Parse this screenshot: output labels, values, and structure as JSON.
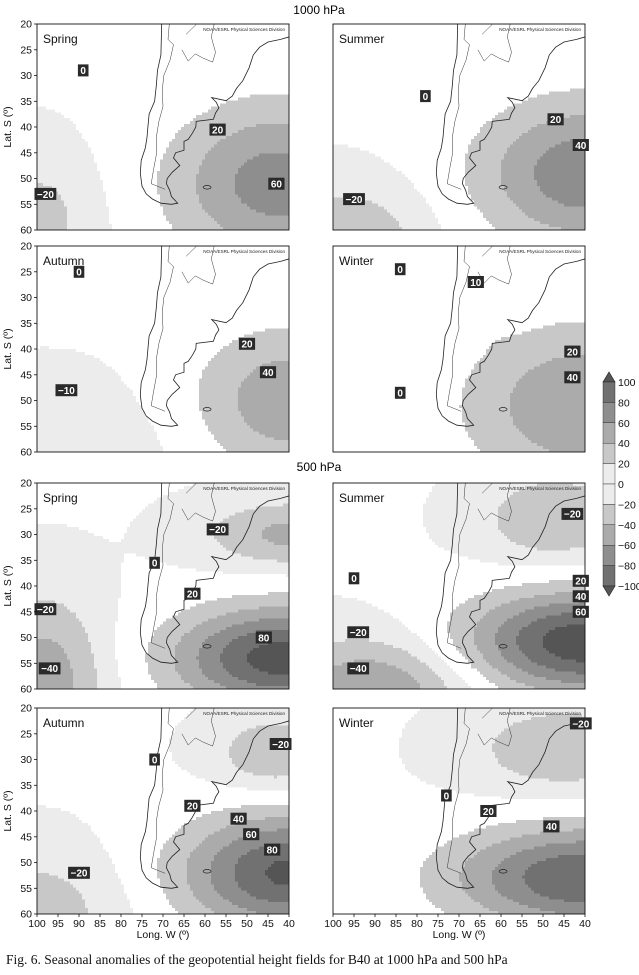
{
  "section_labels": [
    "1000 hPa",
    "500 hPa"
  ],
  "caption": "Fig. 6. Seasonal anomalies of the geopotential height fields for B40 at 1000 hPa and 500 hPa",
  "source_note": "NOAA/ESRL Physical Sciences Division",
  "colorbar": {
    "labels": [
      "100",
      "80",
      "60",
      "40",
      "20",
      "0",
      "−20",
      "−40",
      "−60",
      "−80",
      "−100"
    ],
    "levels": [
      100,
      80,
      60,
      40,
      20,
      0,
      -20,
      -40,
      -60,
      -80,
      -100
    ],
    "colors": [
      "#555555",
      "#717171",
      "#8e8e8e",
      "#ababab",
      "#c8c8c8",
      "#ececec",
      "#ececec",
      "#c8c8c8",
      "#ababab",
      "#8e8e8e",
      "#717171",
      "#555555"
    ]
  },
  "chart_data": [
    {
      "type": "contour",
      "level": "1000 hPa",
      "season": "Spring",
      "xlabel": "",
      "ylabel": "Lat. S (º)",
      "xlim": [
        100,
        40
      ],
      "ylim": [
        20,
        60
      ],
      "x_ticks": [],
      "y_ticks": [
        20,
        25,
        30,
        35,
        40,
        45,
        50,
        55,
        60
      ],
      "centers": [
        {
          "lon": 43,
          "lat": 51,
          "amp": 70,
          "sx": 18,
          "sy": 11
        },
        {
          "lon": 100,
          "lat": 58,
          "amp": -28,
          "sx": 10,
          "sy": 9
        }
      ],
      "contour_labels": [
        {
          "text": "0",
          "lon": 89,
          "lat": 29
        },
        {
          "text": "20",
          "lon": 57,
          "lat": 40.5
        },
        {
          "text": "60",
          "lon": 43,
          "lat": 51
        },
        {
          "text": "−20",
          "lon": 98,
          "lat": 53
        }
      ]
    },
    {
      "type": "contour",
      "level": "1000 hPa",
      "season": "Summer",
      "xlabel": "",
      "ylabel": "",
      "xlim": [
        100,
        40
      ],
      "ylim": [
        20,
        60
      ],
      "x_ticks": [],
      "y_ticks": [],
      "centers": [
        {
          "lon": 40,
          "lat": 49,
          "amp": 75,
          "sx": 18,
          "sy": 10
        },
        {
          "lon": 96,
          "lat": 61,
          "amp": -35,
          "sx": 13,
          "sy": 7
        }
      ],
      "contour_labels": [
        {
          "text": "0",
          "lon": 78,
          "lat": 34
        },
        {
          "text": "20",
          "lon": 47,
          "lat": 38.5
        },
        {
          "text": "40",
          "lon": 41,
          "lat": 43.5
        },
        {
          "text": "−20",
          "lon": 95,
          "lat": 54
        }
      ]
    },
    {
      "type": "contour",
      "level": "1000 hPa",
      "season": "Autumn",
      "xlabel": "",
      "ylabel": "Lat. S (º)",
      "xlim": [
        100,
        40
      ],
      "ylim": [
        20,
        60
      ],
      "x_ticks": [],
      "y_ticks": [
        20,
        25,
        30,
        35,
        40,
        45,
        50,
        55,
        60
      ],
      "centers": [
        {
          "lon": 40,
          "lat": 50,
          "amp": 55,
          "sx": 16,
          "sy": 10
        },
        {
          "lon": 95,
          "lat": 60,
          "amp": -16,
          "sx": 20,
          "sy": 9
        }
      ],
      "contour_labels": [
        {
          "text": "0",
          "lon": 90,
          "lat": 25
        },
        {
          "text": "20",
          "lon": 50,
          "lat": 39
        },
        {
          "text": "40",
          "lon": 45,
          "lat": 44.5
        },
        {
          "text": "−10",
          "lon": 93,
          "lat": 48
        }
      ]
    },
    {
      "type": "contour",
      "level": "1000 hPa",
      "season": "Winter",
      "xlabel": "",
      "ylabel": "",
      "xlim": [
        100,
        40
      ],
      "ylim": [
        20,
        60
      ],
      "x_ticks": [],
      "y_ticks": [],
      "centers": [
        {
          "lon": 40,
          "lat": 51,
          "amp": 60,
          "sx": 20,
          "sy": 11
        },
        {
          "lon": 63,
          "lat": 29,
          "amp": 14,
          "sx": 3.5,
          "sy": 5
        }
      ],
      "contour_labels": [
        {
          "text": "0",
          "lon": 84,
          "lat": 24.5
        },
        {
          "text": "10",
          "lon": 66,
          "lat": 27
        },
        {
          "text": "20",
          "lon": 43,
          "lat": 40.5
        },
        {
          "text": "40",
          "lon": 43,
          "lat": 45.5
        },
        {
          "text": "0",
          "lon": 84,
          "lat": 48.5
        }
      ]
    },
    {
      "type": "contour",
      "level": "500 hPa",
      "season": "Spring",
      "xlabel": "",
      "ylabel": "Lat. S (º)",
      "xlim": [
        100,
        40
      ],
      "ylim": [
        20,
        60
      ],
      "x_ticks": [],
      "y_ticks": [
        20,
        25,
        30,
        35,
        40,
        45,
        50,
        55,
        60
      ],
      "centers": [
        {
          "lon": 42,
          "lat": 54,
          "amp": 110,
          "sx": 18,
          "sy": 7
        },
        {
          "lon": 40,
          "lat": 30,
          "amp": -45,
          "sx": 14,
          "sy": 4.5
        },
        {
          "lon": 98,
          "lat": 58,
          "amp": -52,
          "sx": 10,
          "sy": 11
        }
      ],
      "contour_labels": [
        {
          "text": "−20",
          "lon": 57,
          "lat": 29
        },
        {
          "text": "0",
          "lon": 72,
          "lat": 35.5
        },
        {
          "text": "20",
          "lon": 63,
          "lat": 41.5
        },
        {
          "text": "80",
          "lon": 46,
          "lat": 50
        },
        {
          "text": "−20",
          "lon": 98,
          "lat": 44.5
        },
        {
          "text": "−40",
          "lon": 97,
          "lat": 56
        }
      ]
    },
    {
      "type": "contour",
      "level": "500 hPa",
      "season": "Summer",
      "xlabel": "",
      "ylabel": "",
      "xlim": [
        100,
        40
      ],
      "ylim": [
        20,
        60
      ],
      "x_ticks": [],
      "y_ticks": [],
      "centers": [
        {
          "lon": 40,
          "lat": 51,
          "amp": 115,
          "sx": 20,
          "sy": 7
        },
        {
          "lon": 47,
          "lat": 27,
          "amp": -40,
          "sx": 12,
          "sy": 6
        },
        {
          "lon": 90,
          "lat": 60,
          "amp": -60,
          "sx": 16,
          "sy": 7
        }
      ],
      "contour_labels": [
        {
          "text": "−20",
          "lon": 43,
          "lat": 26
        },
        {
          "text": "0",
          "lon": 95,
          "lat": 38.5
        },
        {
          "text": "20",
          "lon": 41,
          "lat": 39
        },
        {
          "text": "40",
          "lon": 41,
          "lat": 42
        },
        {
          "text": "60",
          "lon": 41,
          "lat": 45
        },
        {
          "text": "−20",
          "lon": 94,
          "lat": 49
        },
        {
          "text": "−40",
          "lon": 94,
          "lat": 56
        }
      ]
    },
    {
      "type": "contour",
      "level": "500 hPa",
      "season": "Autumn",
      "xlabel": "Long. W (º)",
      "ylabel": "Lat. S (º)",
      "xlim": [
        100,
        40
      ],
      "ylim": [
        20,
        60
      ],
      "x_ticks": [
        100,
        95,
        90,
        85,
        80,
        75,
        70,
        65,
        60,
        55,
        50,
        45,
        40
      ],
      "y_ticks": [
        20,
        25,
        30,
        35,
        40,
        45,
        50,
        55,
        60
      ],
      "centers": [
        {
          "lon": 40,
          "lat": 52,
          "amp": 105,
          "sx": 18,
          "sy": 8
        },
        {
          "lon": 43,
          "lat": 29,
          "amp": -40,
          "sx": 10,
          "sy": 5
        },
        {
          "lon": 100,
          "lat": 59,
          "amp": -30,
          "sx": 15,
          "sy": 8
        }
      ],
      "contour_labels": [
        {
          "text": "−20",
          "lon": 42,
          "lat": 27
        },
        {
          "text": "0",
          "lon": 72,
          "lat": 30
        },
        {
          "text": "20",
          "lon": 63,
          "lat": 39
        },
        {
          "text": "40",
          "lon": 52,
          "lat": 41.5
        },
        {
          "text": "60",
          "lon": 49,
          "lat": 44.5
        },
        {
          "text": "80",
          "lon": 44,
          "lat": 47.5
        },
        {
          "text": "−20",
          "lon": 90,
          "lat": 52
        }
      ]
    },
    {
      "type": "contour",
      "level": "500 hPa",
      "season": "Winter",
      "xlabel": "Long. W (º)",
      "ylabel": "",
      "xlim": [
        100,
        40
      ],
      "ylim": [
        20,
        60
      ],
      "x_ticks": [
        100,
        95,
        90,
        85,
        80,
        75,
        70,
        65,
        60,
        55,
        50,
        45,
        40
      ],
      "y_ticks": [],
      "centers": [
        {
          "lon": 40,
          "lat": 53,
          "amp": 100,
          "sx": 22,
          "sy": 7
        },
        {
          "lon": 45,
          "lat": 28,
          "amp": -38,
          "sx": 15,
          "sy": 6
        }
      ],
      "contour_labels": [
        {
          "text": "−20",
          "lon": 41,
          "lat": 23
        },
        {
          "text": "0",
          "lon": 73,
          "lat": 37
        },
        {
          "text": "20",
          "lon": 63,
          "lat": 40
        },
        {
          "text": "40",
          "lon": 48,
          "lat": 43
        }
      ]
    }
  ]
}
